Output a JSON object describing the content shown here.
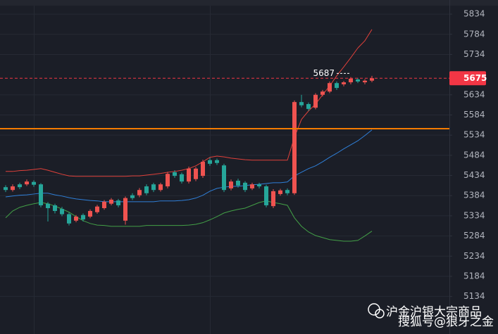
{
  "chart_data": {
    "type": "candlestick",
    "ylim": [
      5041,
      5869
    ],
    "yticks": [
      5134,
      5184,
      5234,
      5284,
      5334,
      5384,
      5434,
      5484,
      5534,
      5584,
      5634,
      5734,
      5784,
      5834
    ],
    "grid": true,
    "up_color": "#ef5350",
    "down_color": "#26a69a",
    "candles": {
      "open": [
        5405,
        5398,
        5412,
        5412,
        5418,
        5412,
        5364,
        5360,
        5351,
        5338,
        5322,
        5336,
        5332,
        5343,
        5353,
        5364,
        5372,
        5322,
        5385,
        5385,
        5407,
        5412,
        5398,
        5407,
        5442,
        5437,
        5419,
        5425,
        5433,
        5472,
        5472,
        5459,
        5402,
        5421,
        5416,
        5402,
        5412,
        5407,
        5358,
        5388,
        5398,
        5390,
        5616,
        5611,
        5602,
        5634,
        5642,
        5663,
        5660,
        5665,
        5672,
        5665,
        5669
      ],
      "high": [
        5410,
        5412,
        5416,
        5424,
        5422,
        5415,
        5368,
        5364,
        5356,
        5342,
        5336,
        5340,
        5350,
        5361,
        5373,
        5378,
        5376,
        5382,
        5390,
        5403,
        5412,
        5416,
        5416,
        5443,
        5447,
        5441,
        5456,
        5455,
        5473,
        5478,
        5476,
        5463,
        5424,
        5426,
        5420,
        5416,
        5416,
        5411,
        5400,
        5401,
        5402,
        5620,
        5634,
        5615,
        5638,
        5646,
        5667,
        5667,
        5668,
        5678,
        5676,
        5673,
        5681
      ],
      "low": [
        5393,
        5394,
        5400,
        5408,
        5406,
        5355,
        5320,
        5340,
        5333,
        5310,
        5318,
        5320,
        5328,
        5339,
        5349,
        5360,
        5355,
        5312,
        5373,
        5380,
        5385,
        5393,
        5394,
        5402,
        5428,
        5414,
        5414,
        5420,
        5428,
        5458,
        5460,
        5393,
        5397,
        5404,
        5393,
        5398,
        5402,
        5355,
        5353,
        5384,
        5385,
        5386,
        5603,
        5594,
        5598,
        5630,
        5638,
        5646,
        5655,
        5660,
        5663,
        5660,
        5665
      ],
      "close": [
        5398,
        5407,
        5405,
        5419,
        5411,
        5360,
        5353,
        5346,
        5338,
        5315,
        5332,
        5325,
        5346,
        5357,
        5369,
        5374,
        5360,
        5378,
        5378,
        5398,
        5390,
        5398,
        5412,
        5438,
        5433,
        5419,
        5451,
        5451,
        5468,
        5463,
        5465,
        5398,
        5419,
        5409,
        5398,
        5412,
        5407,
        5360,
        5395,
        5397,
        5390,
        5616,
        5608,
        5599,
        5634,
        5642,
        5663,
        5651,
        5665,
        5674,
        5667,
        5669,
        5675
      ]
    },
    "bands": [
      {
        "color": "#e0403a",
        "values": [
          5444,
          5444,
          5446,
          5447,
          5449,
          5451,
          5447,
          5442,
          5437,
          5433,
          5432,
          5432,
          5432,
          5432,
          5432,
          5432,
          5432,
          5432,
          5433,
          5433,
          5435,
          5437,
          5439,
          5442,
          5444,
          5447,
          5451,
          5458,
          5468,
          5479,
          5482,
          5480,
          5477,
          5475,
          5473,
          5472,
          5472,
          5472,
          5472,
          5472,
          5472,
          5529,
          5573,
          5594,
          5611,
          5634,
          5656,
          5681,
          5703,
          5726,
          5750,
          5768,
          5796
        ]
      },
      {
        "color": "#2f7fd8",
        "values": [
          5381,
          5383,
          5385,
          5386,
          5388,
          5390,
          5390,
          5386,
          5383,
          5379,
          5376,
          5374,
          5372,
          5371,
          5369,
          5369,
          5369,
          5369,
          5369,
          5369,
          5369,
          5369,
          5371,
          5371,
          5371,
          5372,
          5374,
          5378,
          5385,
          5395,
          5402,
          5405,
          5407,
          5407,
          5409,
          5411,
          5412,
          5414,
          5416,
          5416,
          5418,
          5433,
          5442,
          5451,
          5458,
          5468,
          5479,
          5489,
          5500,
          5510,
          5520,
          5533,
          5547
        ]
      },
      {
        "color": "#43a047",
        "values": [
          5329,
          5346,
          5355,
          5360,
          5364,
          5367,
          5364,
          5358,
          5351,
          5343,
          5332,
          5322,
          5315,
          5311,
          5310,
          5308,
          5308,
          5308,
          5308,
          5308,
          5310,
          5310,
          5310,
          5310,
          5310,
          5310,
          5311,
          5313,
          5317,
          5324,
          5332,
          5341,
          5346,
          5350,
          5353,
          5360,
          5367,
          5371,
          5367,
          5364,
          5360,
          5329,
          5308,
          5294,
          5285,
          5280,
          5275,
          5273,
          5271,
          5271,
          5273,
          5284,
          5296
        ]
      }
    ],
    "level_line": {
      "value": 5550,
      "color": "#f57c00"
    },
    "high_marker": 5687,
    "last_price": 5675,
    "last_price_color": "#f23645"
  },
  "watermark": {
    "line1": "沪金沪银大宗商品",
    "line2": "搜狐号@狼牙之金"
  }
}
